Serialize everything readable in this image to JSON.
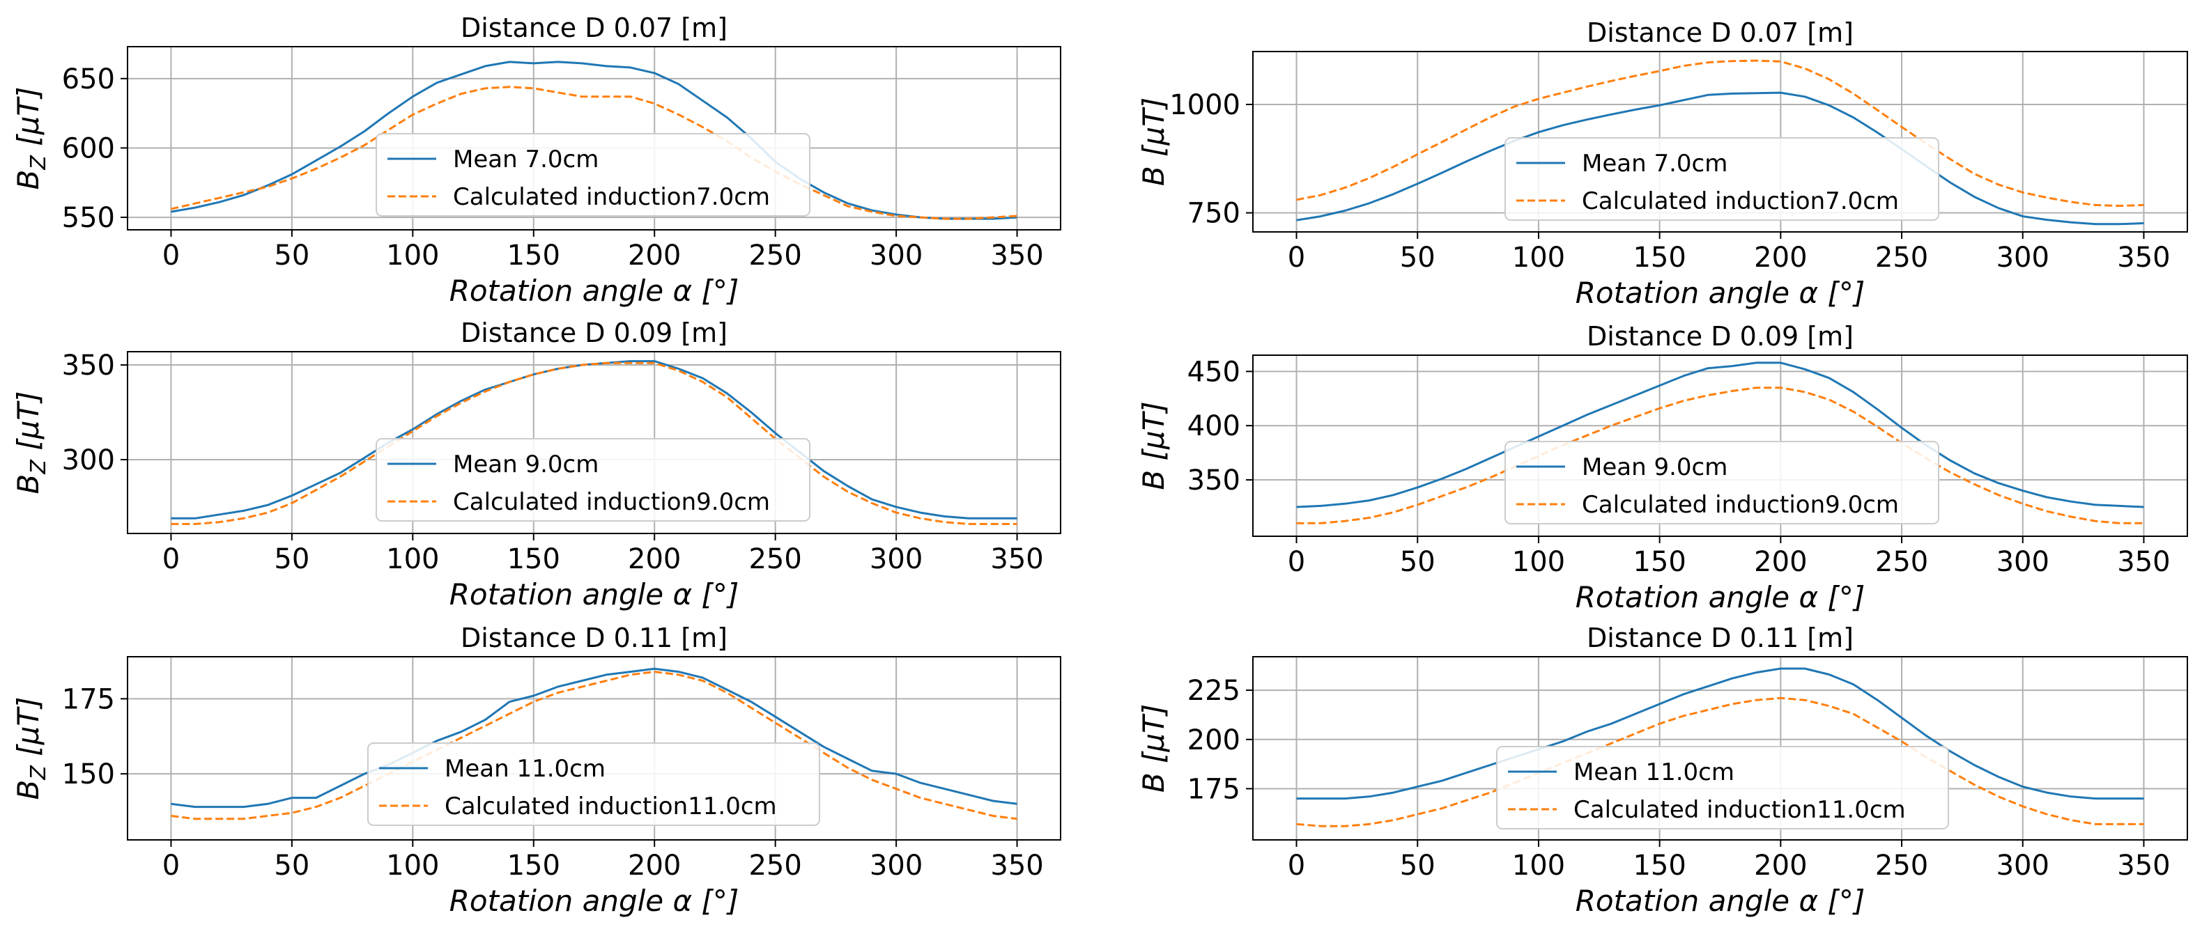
{
  "chart_data": [
    {
      "type": "line",
      "title": "Distance D 0.07 [m]",
      "xlabel": "Rotation angle α [°]",
      "ylabel_main": "B",
      "ylabel_sub": "Z",
      "ylabel_unit": " [μT]",
      "xlim": [
        -18,
        368
      ],
      "ylim": [
        541,
        673
      ],
      "xticks": [
        "0",
        "50",
        "100",
        "150",
        "200",
        "250",
        "300",
        "350"
      ],
      "yticks": [
        "550",
        "600",
        "650"
      ],
      "x": [
        0,
        10,
        20,
        30,
        40,
        50,
        60,
        70,
        80,
        90,
        100,
        110,
        120,
        130,
        140,
        150,
        160,
        170,
        180,
        190,
        200,
        210,
        220,
        230,
        240,
        250,
        260,
        270,
        280,
        290,
        300,
        310,
        320,
        330,
        340,
        350
      ],
      "series": [
        {
          "name": "Mean 7.0cm",
          "color": "#1f77b4",
          "dash": "solid",
          "values": [
            554,
            557,
            561,
            566,
            573,
            581,
            591,
            601,
            612,
            625,
            637,
            647,
            653,
            659,
            662,
            661,
            662,
            661,
            659,
            658,
            654,
            646,
            634,
            622,
            607,
            590,
            578,
            568,
            560,
            555,
            552,
            550,
            549,
            549,
            549,
            550
          ]
        },
        {
          "name": "Calculated induction7.0cm",
          "color": "#ff7f0e",
          "dash": "dashed",
          "values": [
            556,
            560,
            564,
            568,
            572,
            578,
            585,
            593,
            602,
            613,
            624,
            632,
            639,
            643,
            644,
            643,
            640,
            637,
            637,
            637,
            632,
            624,
            615,
            605,
            593,
            583,
            574,
            566,
            558,
            554,
            551,
            550,
            549,
            549,
            550,
            551
          ]
        }
      ],
      "legend": "center"
    },
    {
      "type": "line",
      "title": "Distance D 0.07 [m]",
      "xlabel": "Rotation angle α [°]",
      "ylabel_main": "B",
      "ylabel_sub": "",
      "ylabel_unit": " [μT]",
      "xlim": [
        -18,
        368
      ],
      "ylim": [
        706,
        1122
      ],
      "xticks": [
        "0",
        "50",
        "100",
        "150",
        "200",
        "250",
        "300",
        "350"
      ],
      "yticks": [
        "750",
        "1000"
      ],
      "x": [
        0,
        10,
        20,
        30,
        40,
        50,
        60,
        70,
        80,
        90,
        100,
        110,
        120,
        130,
        140,
        150,
        160,
        170,
        180,
        190,
        200,
        210,
        220,
        230,
        240,
        250,
        260,
        270,
        280,
        290,
        300,
        310,
        320,
        330,
        340,
        350
      ],
      "series": [
        {
          "name": "Mean 7.0cm",
          "color": "#1f77b4",
          "dash": "solid",
          "values": [
            733,
            742,
            755,
            772,
            793,
            817,
            842,
            868,
            893,
            916,
            936,
            952,
            965,
            977,
            988,
            998,
            1010,
            1022,
            1025,
            1026,
            1027,
            1018,
            998,
            970,
            935,
            897,
            858,
            820,
            787,
            761,
            742,
            734,
            728,
            724,
            724,
            726
          ]
        },
        {
          "name": "Calculated induction7.0cm",
          "color": "#ff7f0e",
          "dash": "dashed",
          "values": [
            780,
            791,
            808,
            830,
            856,
            885,
            913,
            942,
            970,
            995,
            1013,
            1027,
            1041,
            1054,
            1066,
            1077,
            1089,
            1097,
            1100,
            1101,
            1099,
            1083,
            1058,
            1025,
            987,
            948,
            910,
            874,
            840,
            815,
            797,
            785,
            775,
            768,
            766,
            768
          ]
        }
      ],
      "legend": "center"
    },
    {
      "type": "line",
      "title": "Distance D 0.09 [m]",
      "xlabel": "Rotation angle α [°]",
      "ylabel_main": "B",
      "ylabel_sub": "Z",
      "ylabel_unit": " [μT]",
      "xlim": [
        -18,
        368
      ],
      "ylim": [
        261,
        357
      ],
      "xticks": [
        "0",
        "50",
        "100",
        "150",
        "200",
        "250",
        "300",
        "350"
      ],
      "yticks": [
        "300",
        "350"
      ],
      "x": [
        0,
        10,
        20,
        30,
        40,
        50,
        60,
        70,
        80,
        90,
        100,
        110,
        120,
        130,
        140,
        150,
        160,
        170,
        180,
        190,
        200,
        210,
        220,
        230,
        240,
        250,
        260,
        270,
        280,
        290,
        300,
        310,
        320,
        330,
        340,
        350
      ],
      "series": [
        {
          "name": "Mean 9.0cm",
          "color": "#1f77b4",
          "dash": "solid",
          "values": [
            269,
            269,
            271,
            273,
            276,
            281,
            287,
            293,
            301,
            309,
            316,
            324,
            331,
            337,
            341,
            345,
            348,
            350,
            351,
            352,
            352,
            348,
            343,
            335,
            325,
            314,
            304,
            294,
            286,
            279,
            275,
            272,
            270,
            269,
            269,
            269
          ]
        },
        {
          "name": "Calculated induction9.0cm",
          "color": "#ff7f0e",
          "dash": "dashed",
          "values": [
            266,
            266,
            267,
            269,
            272,
            277,
            284,
            291,
            299,
            307,
            315,
            323,
            330,
            336,
            341,
            345,
            348,
            350,
            351,
            351,
            351,
            347,
            341,
            333,
            322,
            311,
            301,
            291,
            283,
            277,
            272,
            269,
            267,
            266,
            266,
            266
          ]
        }
      ],
      "legend": "center"
    },
    {
      "type": "line",
      "title": "Distance D 0.09 [m]",
      "xlabel": "Rotation angle α [°]",
      "ylabel_main": "B",
      "ylabel_sub": "",
      "ylabel_unit": " [μT]",
      "xlim": [
        -18,
        368
      ],
      "ylim": [
        298,
        465
      ],
      "xticks": [
        "0",
        "50",
        "100",
        "150",
        "200",
        "250",
        "300",
        "350"
      ],
      "yticks": [
        "350",
        "400",
        "450"
      ],
      "x": [
        0,
        10,
        20,
        30,
        40,
        50,
        60,
        70,
        80,
        90,
        100,
        110,
        120,
        130,
        140,
        150,
        160,
        170,
        180,
        190,
        200,
        210,
        220,
        230,
        240,
        250,
        260,
        270,
        280,
        290,
        300,
        310,
        320,
        330,
        340,
        350
      ],
      "series": [
        {
          "name": "Mean 9.0cm",
          "color": "#1f77b4",
          "dash": "solid",
          "values": [
            325,
            326,
            328,
            331,
            336,
            343,
            351,
            360,
            370,
            380,
            390,
            400,
            410,
            419,
            428,
            437,
            446,
            453,
            455,
            458,
            458,
            452,
            444,
            431,
            415,
            398,
            382,
            368,
            356,
            347,
            340,
            334,
            330,
            327,
            326,
            325
          ]
        },
        {
          "name": "Calculated induction9.0cm",
          "color": "#ff7f0e",
          "dash": "dashed",
          "values": [
            310,
            310,
            312,
            315,
            320,
            327,
            335,
            343,
            352,
            362,
            372,
            382,
            391,
            400,
            408,
            416,
            423,
            428,
            432,
            435,
            435,
            431,
            424,
            413,
            399,
            384,
            370,
            357,
            346,
            336,
            328,
            321,
            316,
            312,
            310,
            310
          ]
        }
      ],
      "legend": "center"
    },
    {
      "type": "line",
      "title": "Distance D 0.11 [m]",
      "xlabel": "Rotation angle α [°]",
      "ylabel_main": "B",
      "ylabel_sub": "Z",
      "ylabel_unit": " [μT]",
      "xlim": [
        -18,
        368
      ],
      "ylim": [
        128,
        189
      ],
      "xticks": [
        "0",
        "50",
        "100",
        "150",
        "200",
        "250",
        "300",
        "350"
      ],
      "yticks": [
        "150",
        "175"
      ],
      "x": [
        0,
        10,
        20,
        30,
        40,
        50,
        60,
        70,
        80,
        90,
        100,
        110,
        120,
        130,
        140,
        150,
        160,
        170,
        180,
        190,
        200,
        210,
        220,
        230,
        240,
        250,
        260,
        270,
        280,
        290,
        300,
        310,
        320,
        330,
        340,
        350
      ],
      "series": [
        {
          "name": "Mean 11.0cm",
          "color": "#1f77b4",
          "dash": "solid",
          "values": [
            140,
            139,
            139,
            139,
            140,
            142,
            142,
            146,
            150,
            153,
            157,
            161,
            164,
            168,
            174,
            176,
            179,
            181,
            183,
            184,
            185,
            184,
            182,
            178,
            174,
            169,
            164,
            159,
            155,
            151,
            150,
            147,
            145,
            143,
            141,
            140
          ]
        },
        {
          "name": "Calculated induction11.0cm",
          "color": "#ff7f0e",
          "dash": "dashed",
          "values": [
            136,
            135,
            135,
            135,
            136,
            137,
            139,
            142,
            146,
            150,
            154,
            158,
            162,
            166,
            170,
            174,
            177,
            179,
            181,
            183,
            184,
            183,
            181,
            177,
            172,
            167,
            162,
            157,
            152,
            148,
            145,
            142,
            140,
            138,
            136,
            135
          ]
        }
      ],
      "legend": "center"
    },
    {
      "type": "line",
      "title": "Distance D 0.11 [m]",
      "xlabel": "Rotation angle α [°]",
      "ylabel_main": "B",
      "ylabel_sub": "",
      "ylabel_unit": " [μT]",
      "xlim": [
        -18,
        368
      ],
      "ylim": [
        149,
        242
      ],
      "xticks": [
        "0",
        "50",
        "100",
        "150",
        "200",
        "250",
        "300",
        "350"
      ],
      "yticks": [
        "175",
        "200",
        "225"
      ],
      "x": [
        0,
        10,
        20,
        30,
        40,
        50,
        60,
        70,
        80,
        90,
        100,
        110,
        120,
        130,
        140,
        150,
        160,
        170,
        180,
        190,
        200,
        210,
        220,
        230,
        240,
        250,
        260,
        270,
        280,
        290,
        300,
        310,
        320,
        330,
        340,
        350
      ],
      "series": [
        {
          "name": "Mean 11.0cm",
          "color": "#1f77b4",
          "dash": "solid",
          "values": [
            170,
            170,
            170,
            171,
            173,
            176,
            179,
            183,
            187,
            191,
            195,
            199,
            204,
            208,
            213,
            218,
            223,
            227,
            231,
            234,
            236,
            236,
            233,
            228,
            220,
            211,
            202,
            194,
            187,
            181,
            176,
            173,
            171,
            170,
            170,
            170
          ]
        },
        {
          "name": "Calculated induction11.0cm",
          "color": "#ff7f0e",
          "dash": "dashed",
          "values": [
            157,
            156,
            156,
            157,
            159,
            162,
            165,
            169,
            173,
            178,
            183,
            188,
            193,
            198,
            203,
            208,
            212,
            215,
            218,
            220,
            221,
            220,
            217,
            213,
            206,
            199,
            191,
            184,
            177,
            171,
            166,
            162,
            159,
            157,
            157,
            157
          ]
        }
      ],
      "legend": "center"
    }
  ]
}
